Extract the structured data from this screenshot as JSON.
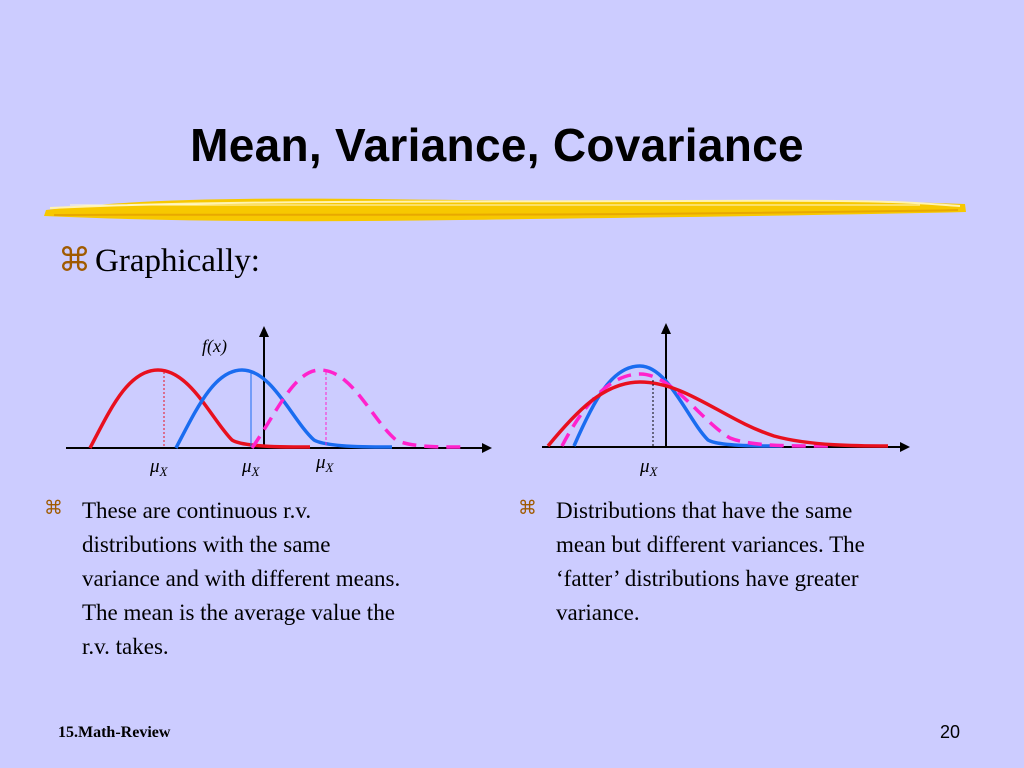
{
  "slide": {
    "title": "Mean, Variance, Covariance",
    "bullet_main": "Graphically:",
    "left_description": [
      "These are continuous r.v.",
      "distributions with the same",
      "variance and with different means.",
      "The mean is the average value the",
      "r.v. takes."
    ],
    "right_description": [
      "Distributions that have the same",
      "mean but different variances.  The",
      "‘fatter’ distributions have greater",
      "variance."
    ],
    "footer_left": "15.Math-Review",
    "page_number": "20"
  },
  "left_graph": {
    "y_axis_label": "f(x)",
    "mean_symbol": "μ",
    "mean_subscript": "X"
  },
  "right_graph": {
    "mean_symbol": "μ",
    "mean_subscript": "X"
  },
  "icons": {
    "bullet": "command-key-icon"
  },
  "colors": {
    "background": "#ccccff",
    "red_curve": "#e8101e",
    "blue_curve": "#1a6cf0",
    "magenta_curve": "#ff22cc",
    "highlight_stroke": "#f7c800",
    "bullet_glyph": "#a05a00"
  }
}
